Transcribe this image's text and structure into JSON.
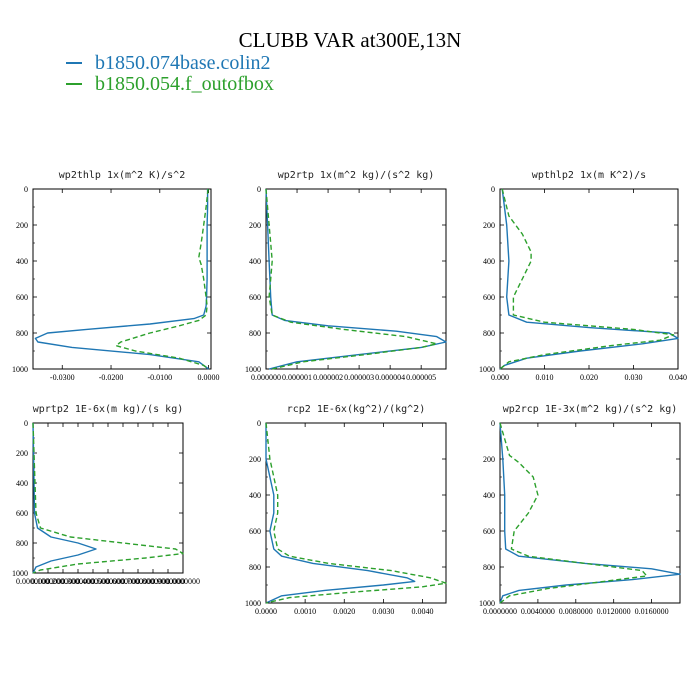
{
  "title": "CLUBB VAR at300E,13N",
  "legend": [
    {
      "label": "b1850.074base.colin2",
      "color": "#1f77b4"
    },
    {
      "label": "b1850.054.f_outofbox",
      "color": "#2ca02c"
    }
  ],
  "chart_data": [
    {
      "type": "line",
      "title": "wp2thlp  1x(m^2 K)/s^2",
      "xlim": [
        -0.036,
        0.0005
      ],
      "ylim": [
        1000,
        0
      ],
      "xticks": [
        "-0.0300",
        "-0.0200",
        "-0.0100",
        "0.0000"
      ],
      "xtick_values": [
        -0.03,
        -0.02,
        -0.01,
        0.0
      ],
      "yticks": [
        "0",
        "200",
        "400",
        "600",
        "800",
        "1000"
      ],
      "series": [
        {
          "color": "#1f77b4",
          "dash": "solid",
          "y": [
            0,
            100,
            200,
            300,
            400,
            500,
            600,
            650,
            700,
            720,
            750,
            780,
            800,
            830,
            850,
            880,
            920,
            960,
            1000
          ],
          "x": [
            -0.0002,
            -0.0002,
            -0.0003,
            -0.0003,
            -0.0003,
            -0.0003,
            -0.0004,
            -0.0005,
            -0.001,
            -0.003,
            -0.012,
            -0.025,
            -0.033,
            -0.0355,
            -0.035,
            -0.028,
            -0.012,
            -0.002,
            0.0
          ]
        },
        {
          "color": "#2ca02c",
          "dash": "5,3",
          "y": [
            0,
            100,
            200,
            300,
            380,
            420,
            500,
            600,
            650,
            700,
            730,
            760,
            800,
            850,
            870,
            900,
            940,
            980,
            1000
          ],
          "x": [
            -0.0001,
            -0.0005,
            -0.001,
            -0.0015,
            -0.002,
            -0.0015,
            -0.001,
            -0.0005,
            -0.0003,
            -0.0005,
            -0.002,
            -0.006,
            -0.012,
            -0.018,
            -0.019,
            -0.015,
            -0.006,
            -0.001,
            0.0
          ]
        }
      ]
    },
    {
      "type": "line",
      "title": "wp2rtp  1x(m^2 kg)/(s^2 kg)",
      "xlim": [
        0.0,
        5.8e-06
      ],
      "ylim": [
        1000,
        0
      ],
      "xticks": [
        "0.000000",
        "0.000001",
        "0.000002",
        "0.000003",
        "0.000004",
        "0.000005"
      ],
      "xtick_values": [
        0.0,
        1e-06,
        2e-06,
        3e-06,
        4e-06,
        5e-06
      ],
      "yticks": [
        "0",
        "200",
        "400",
        "600",
        "800",
        "1000"
      ],
      "series": [
        {
          "color": "#1f77b4",
          "dash": "solid",
          "y": [
            0,
            200,
            400,
            600,
            700,
            730,
            760,
            790,
            820,
            850,
            880,
            920,
            960,
            1000
          ],
          "x": [
            0.0,
            5e-08,
            1e-07,
            1.5e-07,
            2e-07,
            6e-07,
            2e-06,
            4.2e-06,
            5.5e-06,
            5.8e-06,
            5e-06,
            3e-06,
            1e-06,
            1e-07
          ]
        },
        {
          "color": "#2ca02c",
          "dash": "5,3",
          "y": [
            0,
            200,
            300,
            400,
            500,
            600,
            700,
            740,
            780,
            820,
            860,
            880,
            920,
            960,
            1000
          ],
          "x": [
            0.0,
            1e-07,
            1.5e-07,
            2e-07,
            1.5e-07,
            1e-07,
            2e-07,
            8e-07,
            2.5e-06,
            4.5e-06,
            5.5e-06,
            5e-06,
            3.2e-06,
            1.2e-06,
            2e-07
          ]
        }
      ]
    },
    {
      "type": "line",
      "title": "wpthlp2  1x(m K^2)/s",
      "xlim": [
        0.0,
        0.04
      ],
      "ylim": [
        1000,
        0
      ],
      "xticks": [
        "0.000",
        "0.010",
        "0.020",
        "0.030",
        "0.040"
      ],
      "xtick_values": [
        0.0,
        0.01,
        0.02,
        0.03,
        0.04
      ],
      "yticks": [
        "0",
        "200",
        "400",
        "600",
        "800",
        "1000"
      ],
      "series": [
        {
          "color": "#1f77b4",
          "dash": "solid",
          "y": [
            0,
            200,
            400,
            600,
            700,
            740,
            770,
            800,
            830,
            860,
            900,
            940,
            980,
            1000
          ],
          "x": [
            0.0005,
            0.0015,
            0.002,
            0.0015,
            0.002,
            0.006,
            0.02,
            0.038,
            0.04,
            0.032,
            0.018,
            0.006,
            0.001,
            0.0
          ]
        },
        {
          "color": "#2ca02c",
          "dash": "5,3",
          "y": [
            0,
            150,
            250,
            350,
            400,
            500,
            600,
            700,
            740,
            780,
            810,
            840,
            870,
            920,
            960,
            1000
          ],
          "x": [
            0.0005,
            0.002,
            0.005,
            0.007,
            0.007,
            0.005,
            0.003,
            0.003,
            0.01,
            0.03,
            0.039,
            0.036,
            0.025,
            0.01,
            0.002,
            0.0
          ]
        }
      ]
    },
    {
      "type": "line",
      "title": "wprtp2  1E-6x(m kg)/(s kg)",
      "xlim": [
        0.0,
        1.0
      ],
      "ylim": [
        1000,
        0
      ],
      "xticks": [
        "0.0000000",
        "0.1000000",
        "0.2000000",
        "0.3000000",
        "0.4000000",
        "0.5000000",
        "0.6000000",
        "0.7000000",
        "0.8000000",
        "0.9000000",
        "1.0000000"
      ],
      "xtick_values": [
        0.0,
        0.1,
        0.2,
        0.3,
        0.4,
        0.5,
        0.6,
        0.7,
        0.8,
        0.9,
        1.0
      ],
      "yticks": [
        "0",
        "200",
        "400",
        "600",
        "800",
        "1000"
      ],
      "series": [
        {
          "color": "#1f77b4",
          "dash": "solid",
          "y": [
            0,
            300,
            600,
            700,
            760,
            800,
            840,
            880,
            920,
            960,
            1000
          ],
          "x": [
            0.0,
            0.005,
            0.01,
            0.03,
            0.12,
            0.3,
            0.42,
            0.3,
            0.12,
            0.02,
            0.0
          ]
        },
        {
          "color": "#2ca02c",
          "dash": "5,3",
          "y": [
            0,
            300,
            600,
            700,
            760,
            800,
            840,
            870,
            900,
            940,
            980,
            1000
          ],
          "x": [
            0.0,
            0.01,
            0.02,
            0.05,
            0.25,
            0.6,
            0.95,
            1.0,
            0.75,
            0.3,
            0.05,
            0.0
          ]
        }
      ]
    },
    {
      "type": "line",
      "title": "rcp2  1E-6x(kg^2)/(kg^2)",
      "xlim": [
        0.0,
        0.0046
      ],
      "ylim": [
        1000,
        0
      ],
      "xticks": [
        "0.0000",
        "0.0010",
        "0.0020",
        "0.0030",
        "0.0040"
      ],
      "xtick_values": [
        0.0,
        0.001,
        0.002,
        0.003,
        0.004
      ],
      "yticks": [
        "0",
        "200",
        "400",
        "600",
        "800",
        "1000"
      ],
      "series": [
        {
          "color": "#1f77b4",
          "dash": "solid",
          "y": [
            0,
            200,
            300,
            400,
            500,
            600,
            700,
            740,
            780,
            820,
            860,
            880,
            900,
            930,
            960,
            1000
          ],
          "x": [
            0.0,
            0.0,
            0.0001,
            0.0002,
            0.0002,
            0.0001,
            0.0002,
            0.0004,
            0.0012,
            0.0026,
            0.0036,
            0.0038,
            0.003,
            0.0015,
            0.0004,
            0.0
          ]
        },
        {
          "color": "#2ca02c",
          "dash": "5,3",
          "y": [
            0,
            200,
            300,
            400,
            500,
            600,
            700,
            740,
            780,
            820,
            860,
            890,
            910,
            940,
            970,
            1000
          ],
          "x": [
            0.0,
            0.0001,
            0.0002,
            0.0003,
            0.0003,
            0.0002,
            0.0003,
            0.0006,
            0.0016,
            0.0032,
            0.0042,
            0.0046,
            0.004,
            0.0022,
            0.0006,
            0.0
          ]
        }
      ]
    },
    {
      "type": "line",
      "title": "wp2rcp  1E-3x(m^2 kg)/(s^2 kg)",
      "xlim": [
        0.0,
        0.019
      ],
      "ylim": [
        1000,
        0
      ],
      "xticks": [
        "0.0000000",
        "0.0040000",
        "0.0080000",
        "0.0120000",
        "0.0160000"
      ],
      "xtick_values": [
        0.0,
        0.004,
        0.008,
        0.012,
        0.016
      ],
      "yticks": [
        "0",
        "200",
        "400",
        "600",
        "800",
        "1000"
      ],
      "series": [
        {
          "color": "#1f77b4",
          "dash": "solid",
          "y": [
            0,
            200,
            400,
            600,
            700,
            740,
            780,
            810,
            840,
            870,
            900,
            930,
            960,
            1000
          ],
          "x": [
            0.0,
            0.0003,
            0.0005,
            0.0005,
            0.0006,
            0.002,
            0.009,
            0.016,
            0.019,
            0.014,
            0.007,
            0.002,
            0.0003,
            0.0
          ]
        },
        {
          "color": "#2ca02c",
          "dash": "5,3",
          "y": [
            0,
            180,
            220,
            300,
            400,
            500,
            600,
            700,
            740,
            780,
            820,
            850,
            880,
            920,
            960,
            1000
          ],
          "x": [
            0.0,
            0.001,
            0.002,
            0.0035,
            0.004,
            0.003,
            0.0015,
            0.0012,
            0.003,
            0.009,
            0.015,
            0.0155,
            0.011,
            0.005,
            0.001,
            0.0
          ]
        }
      ]
    }
  ]
}
